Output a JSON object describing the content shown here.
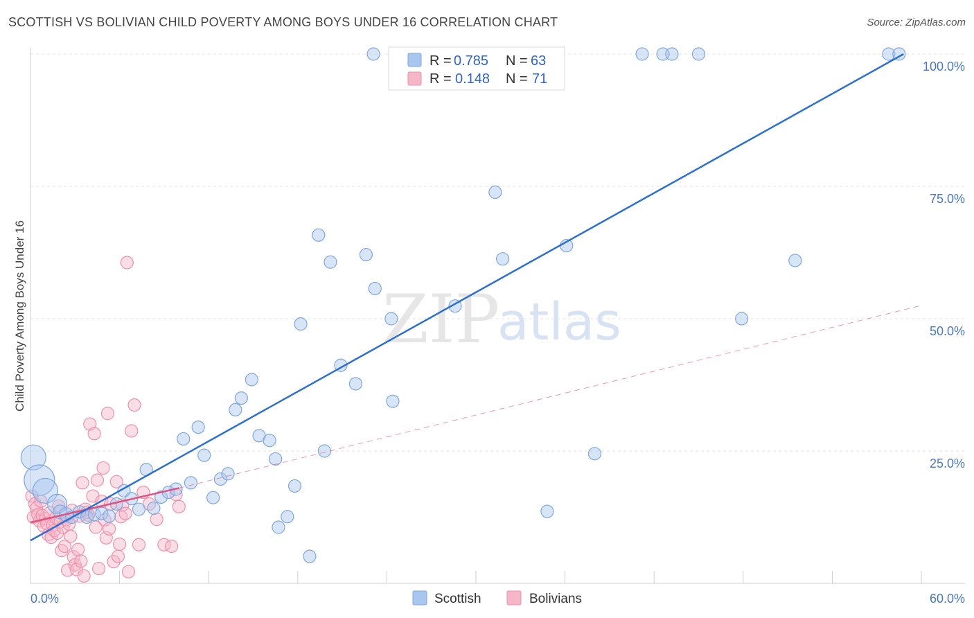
{
  "header": {
    "title": "SCOTTISH VS BOLIVIAN CHILD POVERTY AMONG BOYS UNDER 16 CORRELATION CHART",
    "source": "Source: ZipAtlas.com"
  },
  "watermark": {
    "zip": "ZIP",
    "atlas": "atlas"
  },
  "legend": {
    "scottish": {
      "r_label": "R =",
      "r_value": "0.785",
      "n_label": "N =",
      "n_value": "63"
    },
    "bolivians": {
      "r_label": "R =",
      "r_value": "0.148",
      "n_label": "N =",
      "n_value": "71"
    }
  },
  "colors": {
    "scottish_fill": "#a9c6ee",
    "scottish_stroke": "#7ea6de",
    "scottish_line": "#2c6fcf",
    "bolivian_fill": "#f5b6c8",
    "bolivian_stroke": "#ef8fab",
    "bolivian_line": "#e0527f",
    "grid": "#e3e3e3"
  },
  "chart_data": {
    "type": "scatter",
    "title": "SCOTTISH VS BOLIVIAN CHILD POVERTY AMONG BOYS UNDER 16 CORRELATION CHART",
    "xlabel": "",
    "ylabel": "Child Poverty Among Boys Under 16",
    "xlim": [
      0,
      60
    ],
    "ylim": [
      0,
      100
    ],
    "x_tick_labels": [
      "0.0%",
      "60.0%"
    ],
    "y_ticks": [
      25,
      50,
      75,
      100
    ],
    "y_tick_labels": [
      "25.0%",
      "50.0%",
      "75.0%",
      "100.0%"
    ],
    "grid": true,
    "legend_position": "top-center",
    "series": [
      {
        "name": "Scottish",
        "r": 0.785,
        "n": 63,
        "trend": {
          "x": [
            0,
            58.8
          ],
          "y": [
            8.1,
            100
          ]
        },
        "points": [
          {
            "x": 0.2,
            "y": 23.8,
            "size": 18
          },
          {
            "x": 0.6,
            "y": 19.5,
            "size": 22
          },
          {
            "x": 1.0,
            "y": 17.5,
            "size": 18
          },
          {
            "x": 1.8,
            "y": 15.0,
            "size": 14
          },
          {
            "x": 2.0,
            "y": 13.5,
            "size": 10
          },
          {
            "x": 2.4,
            "y": 13.0,
            "size": 10
          },
          {
            "x": 2.8,
            "y": 12.5,
            "size": 9
          },
          {
            "x": 3.3,
            "y": 13.5,
            "size": 9
          },
          {
            "x": 3.8,
            "y": 12.5,
            "size": 9
          },
          {
            "x": 4.3,
            "y": 13.0,
            "size": 9
          },
          {
            "x": 4.8,
            "y": 13.2,
            "size": 9
          },
          {
            "x": 5.3,
            "y": 12.7,
            "size": 9
          },
          {
            "x": 5.8,
            "y": 15.0,
            "size": 9
          },
          {
            "x": 6.3,
            "y": 17.5,
            "size": 9
          },
          {
            "x": 6.8,
            "y": 16.0,
            "size": 9
          },
          {
            "x": 7.3,
            "y": 14.0,
            "size": 9
          },
          {
            "x": 7.8,
            "y": 21.5,
            "size": 9
          },
          {
            "x": 8.3,
            "y": 14.2,
            "size": 9
          },
          {
            "x": 8.8,
            "y": 16.3,
            "size": 9
          },
          {
            "x": 9.3,
            "y": 17.2,
            "size": 9
          },
          {
            "x": 9.8,
            "y": 17.8,
            "size": 9
          },
          {
            "x": 10.3,
            "y": 27.3,
            "size": 9
          },
          {
            "x": 10.8,
            "y": 19.0,
            "size": 9
          },
          {
            "x": 11.3,
            "y": 29.5,
            "size": 9
          },
          {
            "x": 11.7,
            "y": 24.2,
            "size": 9
          },
          {
            "x": 12.3,
            "y": 16.2,
            "size": 9
          },
          {
            "x": 12.8,
            "y": 19.7,
            "size": 9
          },
          {
            "x": 13.3,
            "y": 20.7,
            "size": 9
          },
          {
            "x": 13.8,
            "y": 32.8,
            "size": 9
          },
          {
            "x": 14.2,
            "y": 35.0,
            "size": 9
          },
          {
            "x": 14.9,
            "y": 38.5,
            "size": 9
          },
          {
            "x": 15.4,
            "y": 27.9,
            "size": 9
          },
          {
            "x": 16.1,
            "y": 27.0,
            "size": 9
          },
          {
            "x": 16.5,
            "y": 23.5,
            "size": 9
          },
          {
            "x": 16.7,
            "y": 10.6,
            "size": 9
          },
          {
            "x": 17.3,
            "y": 12.6,
            "size": 9
          },
          {
            "x": 17.8,
            "y": 18.4,
            "size": 9
          },
          {
            "x": 18.2,
            "y": 49.0,
            "size": 9
          },
          {
            "x": 18.8,
            "y": 5.1,
            "size": 9
          },
          {
            "x": 19.4,
            "y": 65.8,
            "size": 9
          },
          {
            "x": 19.8,
            "y": 25.0,
            "size": 9
          },
          {
            "x": 20.2,
            "y": 60.7,
            "size": 9
          },
          {
            "x": 20.9,
            "y": 41.2,
            "size": 9
          },
          {
            "x": 21.9,
            "y": 37.7,
            "size": 9
          },
          {
            "x": 22.6,
            "y": 62.1,
            "size": 9
          },
          {
            "x": 23.1,
            "y": 100.0,
            "size": 9
          },
          {
            "x": 23.2,
            "y": 55.7,
            "size": 9
          },
          {
            "x": 24.3,
            "y": 50.0,
            "size": 9
          },
          {
            "x": 24.4,
            "y": 34.4,
            "size": 9
          },
          {
            "x": 28.6,
            "y": 52.4,
            "size": 9
          },
          {
            "x": 31.3,
            "y": 73.9,
            "size": 9
          },
          {
            "x": 31.8,
            "y": 61.3,
            "size": 9
          },
          {
            "x": 34.8,
            "y": 13.6,
            "size": 9
          },
          {
            "x": 36.1,
            "y": 63.8,
            "size": 9
          },
          {
            "x": 38.0,
            "y": 24.5,
            "size": 9
          },
          {
            "x": 41.2,
            "y": 100.0,
            "size": 9
          },
          {
            "x": 42.6,
            "y": 100.0,
            "size": 9
          },
          {
            "x": 43.2,
            "y": 100.0,
            "size": 9
          },
          {
            "x": 45.0,
            "y": 100.0,
            "size": 9
          },
          {
            "x": 47.9,
            "y": 50.0,
            "size": 9
          },
          {
            "x": 51.5,
            "y": 61.0,
            "size": 9
          },
          {
            "x": 57.8,
            "y": 100.0,
            "size": 9
          },
          {
            "x": 58.5,
            "y": 100.0,
            "size": 9
          }
        ]
      },
      {
        "name": "Bolivians",
        "r": 0.148,
        "n": 71,
        "trend": {
          "x": [
            0,
            10
          ],
          "y": [
            11.5,
            18.0
          ]
        },
        "trend_extended": {
          "x": [
            10,
            60
          ],
          "y": [
            18.0,
            52.5
          ]
        },
        "points": [
          {
            "x": 0.1,
            "y": 16.5,
            "size": 9
          },
          {
            "x": 0.2,
            "y": 12.5,
            "size": 9
          },
          {
            "x": 0.3,
            "y": 15.0,
            "size": 9
          },
          {
            "x": 0.4,
            "y": 14.2,
            "size": 9
          },
          {
            "x": 0.5,
            "y": 13.0,
            "size": 9
          },
          {
            "x": 0.6,
            "y": 11.8,
            "size": 9
          },
          {
            "x": 0.7,
            "y": 15.5,
            "size": 9
          },
          {
            "x": 0.8,
            "y": 12.8,
            "size": 9
          },
          {
            "x": 0.9,
            "y": 10.8,
            "size": 9
          },
          {
            "x": 1.0,
            "y": 12.2,
            "size": 9
          },
          {
            "x": 1.1,
            "y": 11.3,
            "size": 9
          },
          {
            "x": 1.2,
            "y": 9.2,
            "size": 9
          },
          {
            "x": 1.3,
            "y": 13.3,
            "size": 9
          },
          {
            "x": 1.4,
            "y": 8.7,
            "size": 9
          },
          {
            "x": 1.5,
            "y": 11.0,
            "size": 9
          },
          {
            "x": 1.6,
            "y": 10.0,
            "size": 9
          },
          {
            "x": 1.7,
            "y": 12.4,
            "size": 9
          },
          {
            "x": 1.8,
            "y": 9.5,
            "size": 9
          },
          {
            "x": 1.9,
            "y": 14.6,
            "size": 9
          },
          {
            "x": 2.0,
            "y": 11.6,
            "size": 9
          },
          {
            "x": 2.1,
            "y": 6.2,
            "size": 9
          },
          {
            "x": 2.2,
            "y": 10.6,
            "size": 9
          },
          {
            "x": 2.3,
            "y": 7.0,
            "size": 9
          },
          {
            "x": 2.4,
            "y": 12.0,
            "size": 9
          },
          {
            "x": 2.5,
            "y": 2.5,
            "size": 9
          },
          {
            "x": 2.6,
            "y": 11.2,
            "size": 9
          },
          {
            "x": 2.7,
            "y": 8.9,
            "size": 9
          },
          {
            "x": 2.8,
            "y": 13.8,
            "size": 9
          },
          {
            "x": 2.9,
            "y": 5.0,
            "size": 9
          },
          {
            "x": 3.0,
            "y": 3.5,
            "size": 9
          },
          {
            "x": 3.1,
            "y": 2.6,
            "size": 9
          },
          {
            "x": 3.2,
            "y": 6.4,
            "size": 9
          },
          {
            "x": 3.3,
            "y": 12.7,
            "size": 9
          },
          {
            "x": 3.4,
            "y": 4.2,
            "size": 9
          },
          {
            "x": 3.5,
            "y": 19.0,
            "size": 9
          },
          {
            "x": 3.6,
            "y": 1.4,
            "size": 9
          },
          {
            "x": 3.7,
            "y": 14.0,
            "size": 9
          },
          {
            "x": 3.8,
            "y": 13.4,
            "size": 9
          },
          {
            "x": 3.9,
            "y": 12.9,
            "size": 9
          },
          {
            "x": 4.0,
            "y": 30.1,
            "size": 9
          },
          {
            "x": 4.2,
            "y": 16.5,
            "size": 9
          },
          {
            "x": 4.3,
            "y": 28.3,
            "size": 9
          },
          {
            "x": 4.4,
            "y": 10.6,
            "size": 9
          },
          {
            "x": 4.5,
            "y": 19.5,
            "size": 9
          },
          {
            "x": 4.6,
            "y": 2.8,
            "size": 9
          },
          {
            "x": 4.8,
            "y": 15.5,
            "size": 9
          },
          {
            "x": 4.9,
            "y": 21.8,
            "size": 9
          },
          {
            "x": 5.0,
            "y": 12.0,
            "size": 9
          },
          {
            "x": 5.1,
            "y": 8.6,
            "size": 9
          },
          {
            "x": 5.2,
            "y": 32.1,
            "size": 9
          },
          {
            "x": 5.3,
            "y": 10.3,
            "size": 9
          },
          {
            "x": 5.4,
            "y": 15.0,
            "size": 9
          },
          {
            "x": 5.6,
            "y": 4.1,
            "size": 9
          },
          {
            "x": 5.8,
            "y": 19.2,
            "size": 9
          },
          {
            "x": 5.9,
            "y": 5.1,
            "size": 9
          },
          {
            "x": 6.0,
            "y": 7.4,
            "size": 9
          },
          {
            "x": 6.1,
            "y": 12.6,
            "size": 9
          },
          {
            "x": 6.2,
            "y": 14.8,
            "size": 9
          },
          {
            "x": 6.4,
            "y": 13.2,
            "size": 9
          },
          {
            "x": 6.5,
            "y": 60.6,
            "size": 9
          },
          {
            "x": 6.6,
            "y": 2.2,
            "size": 9
          },
          {
            "x": 6.8,
            "y": 28.8,
            "size": 9
          },
          {
            "x": 7.0,
            "y": 33.7,
            "size": 9
          },
          {
            "x": 7.3,
            "y": 7.3,
            "size": 9
          },
          {
            "x": 7.6,
            "y": 17.2,
            "size": 9
          },
          {
            "x": 8.0,
            "y": 15.0,
            "size": 9
          },
          {
            "x": 8.5,
            "y": 12.1,
            "size": 9
          },
          {
            "x": 9.0,
            "y": 7.3,
            "size": 9
          },
          {
            "x": 9.5,
            "y": 7.0,
            "size": 9
          },
          {
            "x": 9.8,
            "y": 16.8,
            "size": 9
          },
          {
            "x": 10.0,
            "y": 14.5,
            "size": 9
          }
        ]
      }
    ]
  },
  "bottom_legend": {
    "scottish_label": "Scottish",
    "bolivians_label": "Bolivians"
  }
}
